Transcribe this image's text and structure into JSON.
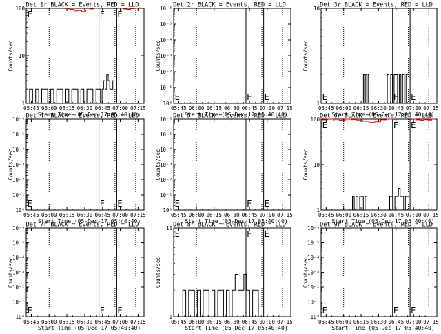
{
  "colors": {
    "events": "#000000",
    "lld": "#ff0000",
    "background": "#ffffff"
  },
  "common": {
    "xlabel": "Start Time (05-Dec-17 05:40:40)",
    "ylabel": "Counts/sec",
    "x_ticks": [
      "05:45",
      "06:00",
      "06:15",
      "06:30",
      "06:45",
      "07:00",
      "07:15"
    ],
    "x_range": [
      "05:40:40",
      "07:20:00"
    ],
    "dotted_markers": [
      "06:00",
      "06:55:30",
      "07:13"
    ],
    "solid_markers": [
      "06:42",
      "06:57"
    ],
    "markers": [
      {
        "label": "E",
        "time": "05:41"
      },
      {
        "label": "F",
        "time": "06:42"
      },
      {
        "label": "E",
        "time": "06:57"
      }
    ]
  },
  "chart_data": [
    {
      "type": "line",
      "title": "Det 1r BLACK = Events, RED = LLD",
      "y_scale": "log",
      "ylim": [
        1,
        100
      ],
      "y_ticks": [
        "1",
        "10",
        "100"
      ],
      "series": [
        {
          "name": "Events",
          "color": "#000000",
          "segments": [
            {
              "start": "05:41",
              "end": "06:42",
              "values": [
                1,
                2,
                1,
                2,
                1,
                2,
                2,
                1,
                2,
                1,
                2,
                2,
                1,
                2,
                1,
                2,
                2,
                1,
                2,
                1,
                2,
                2,
                1,
                2
              ]
            },
            {
              "start": "06:42",
              "end": "06:55",
              "values": [
                2,
                1,
                2,
                3,
                2,
                4,
                3,
                2,
                2,
                3
              ]
            }
          ]
        },
        {
          "name": "LLD",
          "color": "#ff0000",
          "segments": [
            {
              "start": "06:14",
              "end": "06:41",
              "values": [
                98,
                95,
                88,
                90,
                85,
                92,
                97,
                100
              ]
            },
            {
              "start": "06:59",
              "end": "07:15",
              "values": [
                100,
                97,
                95,
                98,
                100
              ]
            }
          ]
        }
      ]
    },
    {
      "type": "line",
      "title": "Det 2r BLACK = Events, RED = LLD",
      "y_scale": "log",
      "ylim": [
        1,
        1e-06
      ],
      "y_ticks": [
        "10⁰",
        "10⁻¹",
        "10⁻²",
        "10⁻³",
        "10⁻⁴",
        "10⁻⁵",
        "10⁻⁶"
      ],
      "series": []
    },
    {
      "type": "line",
      "title": "Det 3r BLACK = Events, RED = LLD",
      "y_scale": "log",
      "ylim": [
        1,
        10
      ],
      "y_ticks": [
        "1",
        "10"
      ],
      "series": [
        {
          "name": "Events",
          "color": "#000000",
          "segments": [
            {
              "start": "06:16",
              "end": "06:22",
              "values": [
                1,
                2,
                1,
                2,
                1,
                2
              ]
            },
            {
              "start": "06:36",
              "end": "06:55",
              "values": [
                1,
                2,
                1,
                2,
                1,
                2,
                2,
                1,
                2,
                1,
                2,
                1,
                2
              ]
            }
          ]
        }
      ]
    },
    {
      "type": "line",
      "title": "Det 4r BLACK = Events, RED = LLD",
      "y_scale": "log",
      "ylim": [
        1,
        1e-06
      ],
      "y_ticks": [
        "10⁰",
        "10⁻¹",
        "10⁻²",
        "10⁻³",
        "10⁻⁴",
        "10⁻⁵",
        "10⁻⁶"
      ],
      "series": []
    },
    {
      "type": "line",
      "title": "Det 5r BLACK = Events, RED = LLD",
      "y_scale": "log",
      "ylim": [
        1,
        1e-06
      ],
      "y_ticks": [
        "10⁰",
        "10⁻¹",
        "10⁻²",
        "10⁻³",
        "10⁻⁴",
        "10⁻⁵",
        "10⁻⁶"
      ],
      "series": []
    },
    {
      "type": "line",
      "title": "Det 6r BLACK = Events, RED = LLD",
      "y_scale": "log",
      "ylim": [
        1,
        100
      ],
      "y_ticks": [
        "1",
        "10",
        "100"
      ],
      "series": [
        {
          "name": "Events",
          "color": "#000000",
          "segments": [
            {
              "start": "06:06",
              "end": "06:20",
              "values": [
                1,
                2,
                1,
                2,
                1,
                2,
                2,
                1,
                2
              ]
            },
            {
              "start": "06:38",
              "end": "06:56",
              "values": [
                1,
                2,
                2,
                1,
                2,
                2,
                3,
                2,
                2,
                1,
                2,
                2
              ]
            }
          ]
        },
        {
          "name": "LLD",
          "color": "#ff0000",
          "segments": [
            {
              "start": "05:41",
              "end": "06:42",
              "values": [
                97,
                100,
                92,
                95,
                100,
                98,
                94,
                90,
                85,
                88,
                97,
                100
              ]
            },
            {
              "start": "06:59",
              "end": "07:19",
              "values": [
                100,
                97,
                95,
                98,
                96,
                100
              ]
            }
          ]
        }
      ]
    },
    {
      "type": "line",
      "title": "Det 7r BLACK = Events, RED = LLD",
      "y_scale": "log",
      "ylim": [
        1,
        1e-06
      ],
      "y_ticks": [
        "10⁰",
        "10⁻¹",
        "10⁻²",
        "10⁻³",
        "10⁻⁴",
        "10⁻⁵",
        "10⁻⁶"
      ],
      "series": []
    },
    {
      "type": "line",
      "title": "Det 8r BLACK = Events, RED = LLD",
      "y_scale": "log",
      "ylim": [
        1,
        10
      ],
      "y_ticks": [
        "1",
        "10"
      ],
      "series": [
        {
          "name": "Events",
          "color": "#000000",
          "segments": [
            {
              "start": "05:46",
              "end": "06:55",
              "values": [
                1,
                2,
                1,
                2,
                2,
                1,
                2,
                1,
                2,
                2,
                1,
                2,
                1,
                2,
                2,
                1,
                2,
                1,
                2,
                3,
                2,
                2,
                3,
                2,
                1,
                2,
                2,
                1
              ]
            }
          ]
        }
      ]
    },
    {
      "type": "line",
      "title": "Det 9r BLACK = Events, RED = LLD",
      "y_scale": "log",
      "ylim": [
        1,
        1e-06
      ],
      "y_ticks": [
        "10⁰",
        "10⁻¹",
        "10⁻²",
        "10⁻³",
        "10⁻⁴",
        "10⁻⁵",
        "10⁻⁶"
      ],
      "series": []
    }
  ]
}
